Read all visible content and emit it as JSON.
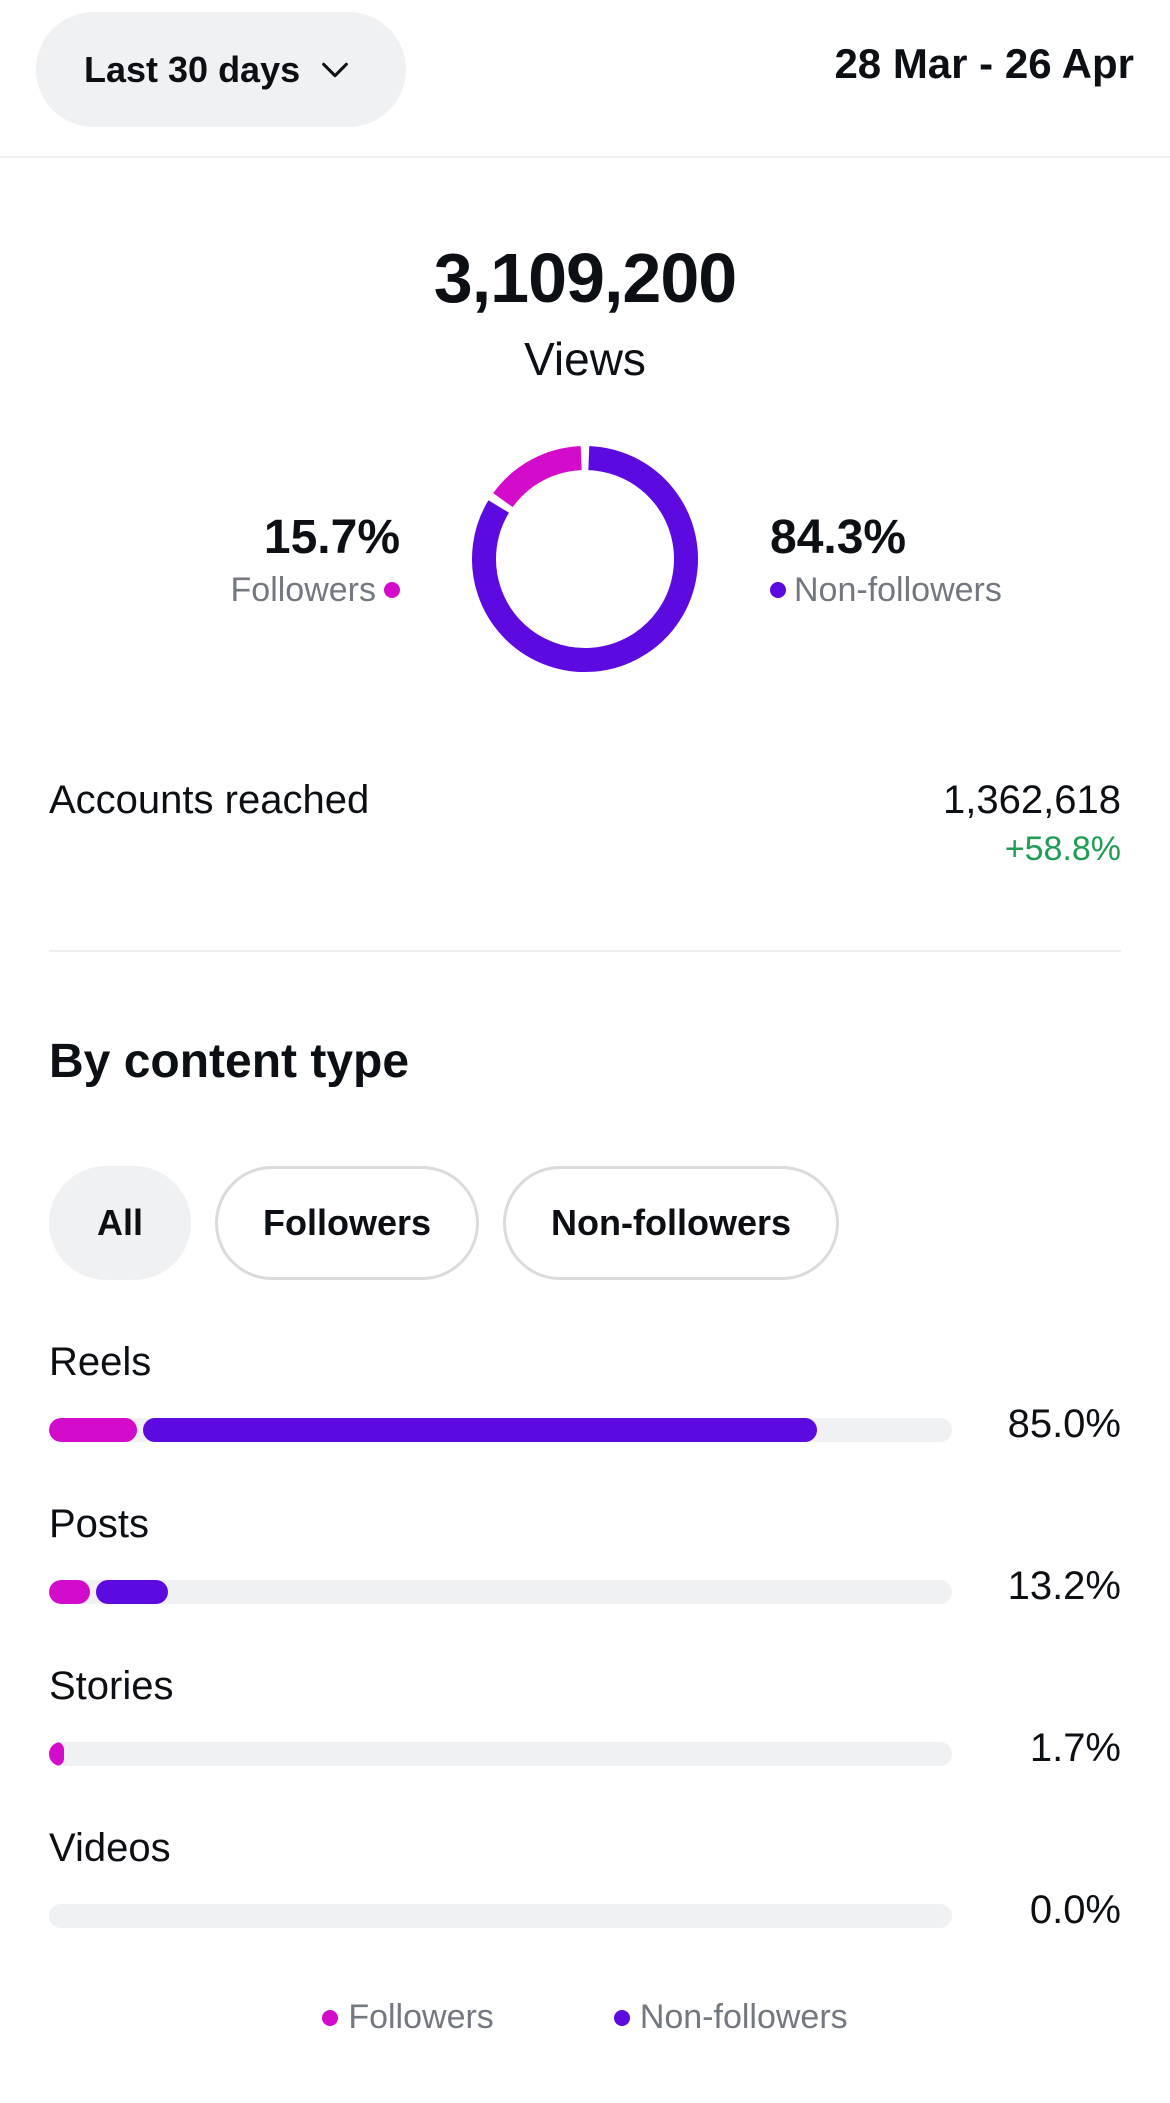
{
  "header": {
    "range_label": "Last 30 days",
    "date_range": "28 Mar - 26 Apr"
  },
  "summary": {
    "views_value": "3,109,200",
    "views_label": "Views",
    "followers_pct": "15.7%",
    "followers_label": "Followers",
    "nonfollowers_pct": "84.3%",
    "nonfollowers_label": "Non-followers"
  },
  "donut": {
    "followers_fraction": 0.157,
    "nonfollowers_fraction": 0.843
  },
  "reach": {
    "label": "Accounts reached",
    "value": "1,362,618",
    "change": "+58.8%"
  },
  "content": {
    "title": "By content type",
    "filters": [
      "All",
      "Followers",
      "Non-followers"
    ],
    "active_filter": "All",
    "rows": [
      {
        "label": "Reels",
        "pct": "85.0%",
        "followers_share": 0.097,
        "nonfollowers_share": 0.753
      },
      {
        "label": "Posts",
        "pct": "13.2%",
        "followers_share": 0.045,
        "nonfollowers_share": 0.087
      },
      {
        "label": "Stories",
        "pct": "1.7%",
        "followers_share": 0.017,
        "nonfollowers_share": 0.0
      },
      {
        "label": "Videos",
        "pct": "0.0%",
        "followers_share": 0.0,
        "nonfollowers_share": 0.0
      }
    ],
    "legend": [
      "Followers",
      "Non-followers"
    ]
  },
  "colors": {
    "followers": "#d30ccb",
    "nonfollowers": "#5c0ae0",
    "positive": "#1f9d55"
  },
  "icons": {
    "range_chevron": "chevron-down-icon"
  }
}
